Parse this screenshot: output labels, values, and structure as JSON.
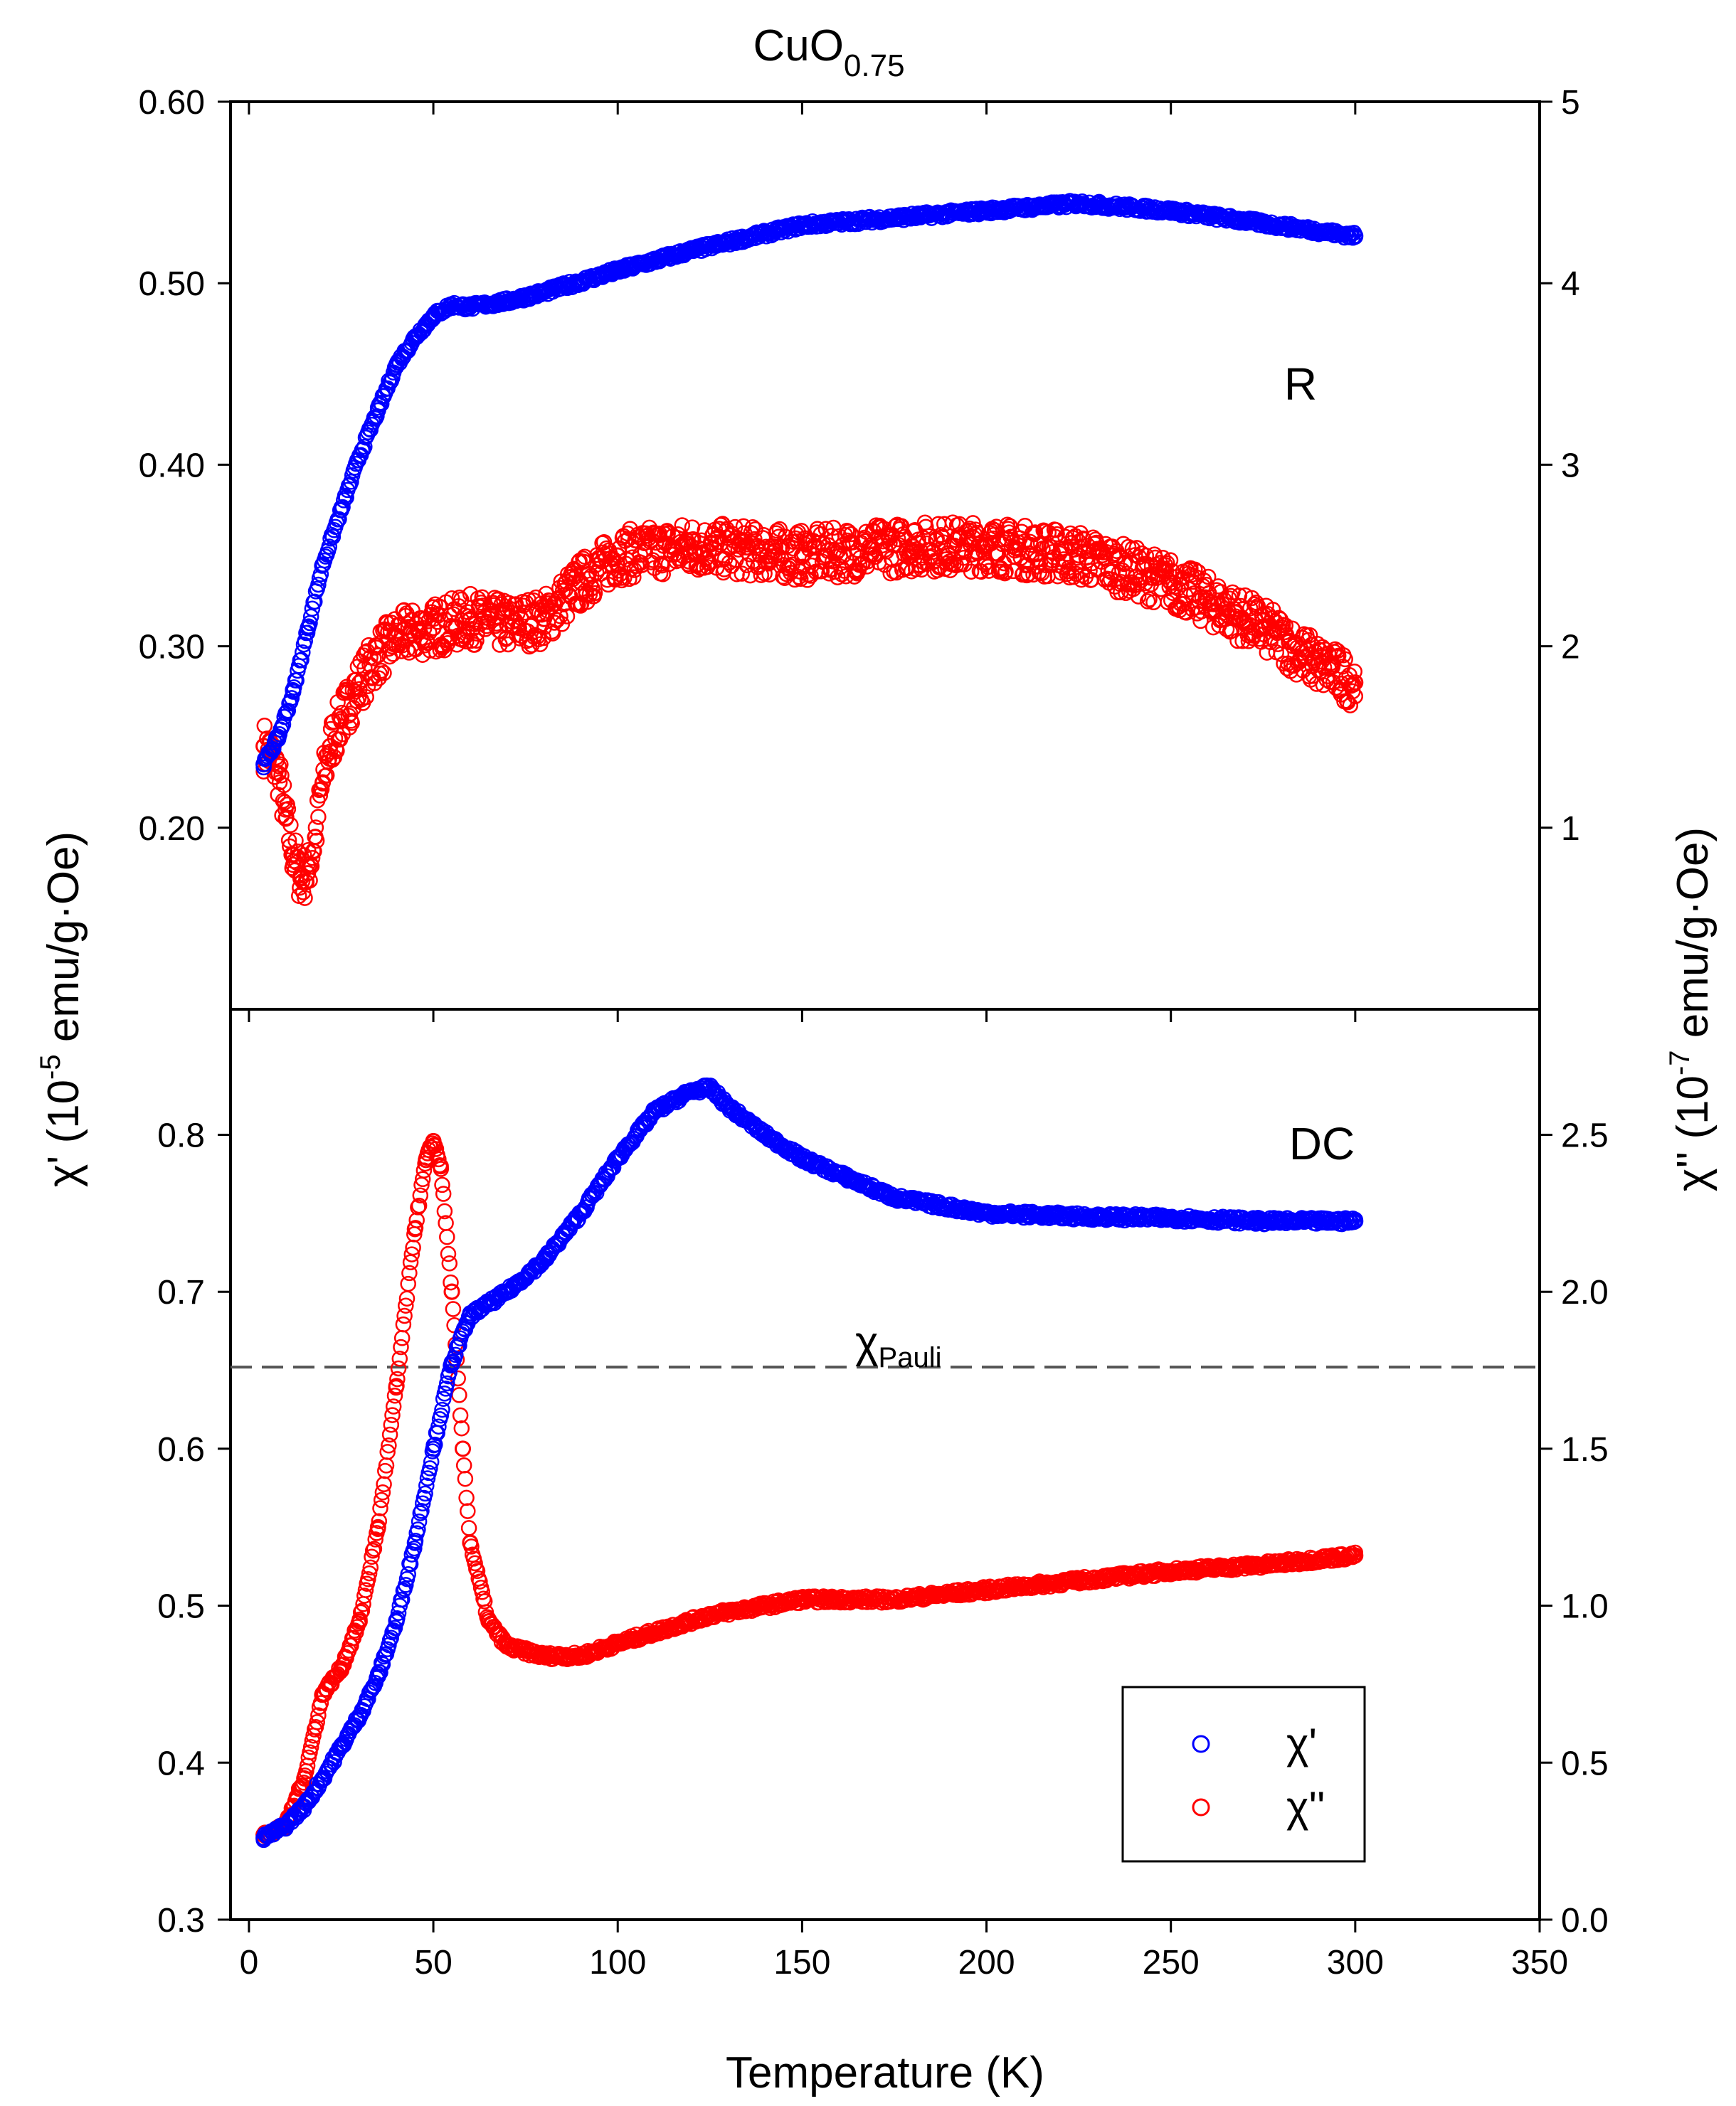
{
  "chart_data": {
    "type": "scatter",
    "title": "CuO",
    "title_subscript": "0.75",
    "xlabel": "Temperature (K)",
    "xlim": [
      -5,
      350
    ],
    "xticks": [
      0,
      50,
      100,
      150,
      200,
      250,
      300,
      350
    ],
    "left_ylabel": {
      "symbol": "χ'",
      "prefix": " (10",
      "exponent": "-5",
      "units": " emu/g·Oe)"
    },
    "right_ylabel": {
      "symbol": "χ''",
      "prefix": " (10",
      "exponent": "-7",
      "units": " emu/g·Oe)"
    },
    "legend": [
      {
        "name": "χ'",
        "color": "#0000ff"
      },
      {
        "name": "χ''",
        "color": "#ff0000"
      }
    ],
    "panels": [
      {
        "label": "R",
        "left_ylim": [
          0.1,
          0.6
        ],
        "left_yticks": [
          0.2,
          0.3,
          0.4,
          0.5,
          0.6
        ],
        "left_tick_labels": [
          "0.20",
          "0.30",
          "0.40",
          "0.50",
          "0.60"
        ],
        "right_ylim": [
          0,
          5
        ],
        "right_yticks": [
          1,
          2,
          3,
          4,
          5
        ],
        "right_tick_labels": [
          "1",
          "2",
          "3",
          "4",
          "5"
        ],
        "series": [
          {
            "name": "χ'",
            "axis": "left",
            "color": "#0000ff",
            "x": [
              4,
              8,
              12,
              16,
              20,
              25,
              30,
              35,
              40,
              45,
              50,
              55,
              60,
              70,
              80,
              100,
              120,
              150,
              200,
              225,
              250,
              275,
              300
            ],
            "y": [
              0.235,
              0.25,
              0.275,
              0.31,
              0.345,
              0.375,
              0.405,
              0.43,
              0.455,
              0.47,
              0.482,
              0.488,
              0.487,
              0.49,
              0.495,
              0.507,
              0.518,
              0.532,
              0.54,
              0.544,
              0.54,
              0.533,
              0.526
            ]
          },
          {
            "name": "χ''",
            "axis": "right",
            "color": "#ff0000",
            "x": [
              4,
              6,
              8,
              10,
              12,
              14,
              16,
              18,
              20,
              22,
              25,
              30,
              35,
              40,
              50,
              60,
              70,
              80,
              90,
              100,
              120,
              150,
              180,
              200,
              225,
              250,
              275,
              290,
              300
            ],
            "y": [
              1.45,
              1.4,
              1.3,
              1.05,
              0.85,
              0.72,
              0.75,
              0.95,
              1.25,
              1.45,
              1.6,
              1.8,
              1.95,
              2.05,
              2.1,
              2.15,
              2.12,
              2.15,
              2.35,
              2.5,
              2.55,
              2.5,
              2.55,
              2.55,
              2.5,
              2.35,
              2.1,
              1.9,
              1.8
            ]
          }
        ]
      },
      {
        "label": "DC",
        "left_ylim": [
          0.3,
          0.88
        ],
        "left_yticks": [
          0.3,
          0.4,
          0.5,
          0.6,
          0.7,
          0.8
        ],
        "left_tick_labels": [
          "0.3",
          "0.4",
          "0.5",
          "0.6",
          "0.7",
          "0.8"
        ],
        "right_ylim": [
          0.0,
          2.9
        ],
        "right_yticks": [
          0.0,
          0.5,
          1.0,
          1.5,
          2.0,
          2.5
        ],
        "right_tick_labels": [
          "0.0",
          "0.5",
          "1.0",
          "1.5",
          "2.0",
          "2.5"
        ],
        "reference_line": {
          "name": "χ",
          "subscript": "Pauli",
          "y": 0.652,
          "style": "dashed"
        },
        "series": [
          {
            "name": "χ'",
            "axis": "left",
            "color": "#0000ff",
            "x": [
              4,
              10,
              15,
              20,
              25,
              30,
              35,
              40,
              45,
              50,
              55,
              60,
              70,
              80,
              90,
              100,
              110,
              120,
              125,
              130,
              140,
              150,
              175,
              200,
              225,
              250,
              275,
              300
            ],
            "y": [
              0.352,
              0.36,
              0.372,
              0.39,
              0.41,
              0.43,
              0.455,
              0.49,
              0.54,
              0.6,
              0.655,
              0.685,
              0.7,
              0.72,
              0.75,
              0.785,
              0.815,
              0.828,
              0.83,
              0.818,
              0.8,
              0.785,
              0.76,
              0.75,
              0.748,
              0.747,
              0.745,
              0.745
            ]
          },
          {
            "name": "χ''",
            "axis": "right",
            "color": "#ff0000",
            "x": [
              4,
              10,
              15,
              20,
              25,
              30,
              35,
              40,
              45,
              48,
              50,
              52,
              55,
              58,
              60,
              65,
              70,
              80,
              90,
              100,
              125,
              150,
              175,
              200,
              225,
              250,
              275,
              300
            ],
            "y": [
              0.27,
              0.3,
              0.45,
              0.72,
              0.8,
              0.95,
              1.25,
              1.7,
              2.2,
              2.42,
              2.48,
              2.4,
              2.0,
              1.5,
              1.2,
              0.95,
              0.87,
              0.84,
              0.84,
              0.88,
              0.97,
              1.02,
              1.02,
              1.05,
              1.08,
              1.11,
              1.13,
              1.16
            ]
          }
        ]
      }
    ]
  }
}
